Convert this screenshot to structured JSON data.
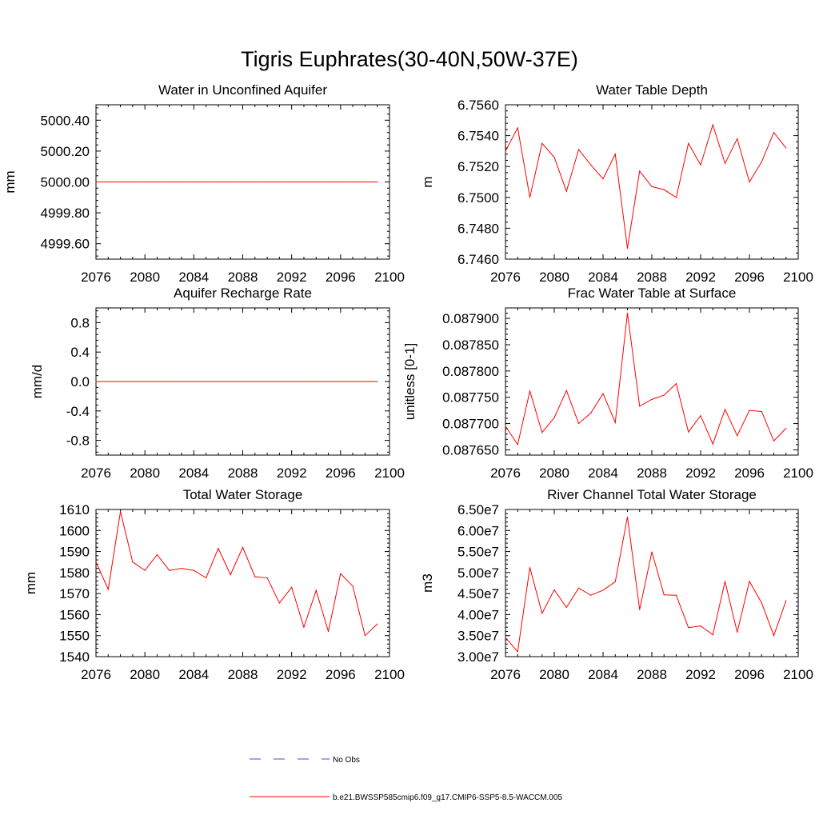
{
  "figure_title": "Tigris Euphrates(30-40N,50W-37E)",
  "colors": {
    "model_line": "#ff0000",
    "obs_line": "#4a4adb",
    "axis": "#000000"
  },
  "legend": {
    "obs_label": "No Obs",
    "model_label": "b.e21.BWSSP585cmip6.f09_g17.CMIP6-SSP5-8.5-WACCM.005"
  },
  "chart_data": [
    {
      "type": "line",
      "title": "Water in Unconfined Aquifer",
      "xlabel": "",
      "ylabel": "mm",
      "xlim": [
        2076,
        2100
      ],
      "ylim": [
        4999.5,
        5000.5
      ],
      "xticks": [
        2076,
        2080,
        2084,
        2088,
        2092,
        2096,
        2100
      ],
      "xtick_labels": [
        "2076",
        "2080",
        "2084",
        "2088",
        "2092",
        "2096",
        "2100"
      ],
      "yticks": [
        4999.6,
        4999.8,
        5000.0,
        5000.2,
        5000.4
      ],
      "ytick_labels": [
        "4999.60",
        "4999.80",
        "5000.00",
        "5000.20",
        "5000.40"
      ],
      "x": [
        2076,
        2077,
        2078,
        2079,
        2080,
        2081,
        2082,
        2083,
        2084,
        2085,
        2086,
        2087,
        2088,
        2089,
        2090,
        2091,
        2092,
        2093,
        2094,
        2095,
        2096,
        2097,
        2098,
        2099
      ],
      "series": [
        {
          "name": "b.e21.BWSSP585cmip6.f09_g17.CMIP6-SSP5-8.5-WACCM.005",
          "values": [
            5000,
            5000,
            5000,
            5000,
            5000,
            5000,
            5000,
            5000,
            5000,
            5000,
            5000,
            5000,
            5000,
            5000,
            5000,
            5000,
            5000,
            5000,
            5000,
            5000,
            5000,
            5000,
            5000,
            5000
          ]
        }
      ]
    },
    {
      "type": "line",
      "title": "Water Table Depth",
      "xlabel": "",
      "ylabel": "m",
      "xlim": [
        2076,
        2100
      ],
      "ylim": [
        6.746,
        6.756
      ],
      "xticks": [
        2076,
        2080,
        2084,
        2088,
        2092,
        2096,
        2100
      ],
      "xtick_labels": [
        "2076",
        "2080",
        "2084",
        "2088",
        "2092",
        "2096",
        "2100"
      ],
      "yticks": [
        6.746,
        6.748,
        6.75,
        6.752,
        6.754,
        6.756
      ],
      "ytick_labels": [
        "6.7460",
        "6.7480",
        "6.7500",
        "6.7520",
        "6.7540",
        "6.7560"
      ],
      "x": [
        2076,
        2077,
        2078,
        2079,
        2080,
        2081,
        2082,
        2083,
        2084,
        2085,
        2086,
        2087,
        2088,
        2089,
        2090,
        2091,
        2092,
        2093,
        2094,
        2095,
        2096,
        2097,
        2098,
        2099
      ],
      "series": [
        {
          "name": "b.e21.BWSSP585cmip6.f09_g17.CMIP6-SSP5-8.5-WACCM.005",
          "values": [
            6.753,
            6.7545,
            6.75,
            6.7535,
            6.7526,
            6.7504,
            6.7531,
            6.7521,
            6.7512,
            6.7528,
            6.7467,
            6.7517,
            6.7507,
            6.7505,
            6.75,
            6.7535,
            6.7521,
            6.7547,
            6.7522,
            6.7538,
            6.751,
            6.7523,
            6.7542,
            6.7532
          ]
        }
      ]
    },
    {
      "type": "line",
      "title": "Aquifer Recharge Rate",
      "xlabel": "",
      "ylabel": "mm/d",
      "xlim": [
        2076,
        2100
      ],
      "ylim": [
        -1.0,
        1.0
      ],
      "xticks": [
        2076,
        2080,
        2084,
        2088,
        2092,
        2096,
        2100
      ],
      "xtick_labels": [
        "2076",
        "2080",
        "2084",
        "2088",
        "2092",
        "2096",
        "2100"
      ],
      "yticks": [
        -0.8,
        -0.4,
        0.0,
        0.4,
        0.8
      ],
      "ytick_labels": [
        "-0.8",
        "-0.4",
        "0.0",
        "0.4",
        "0.8"
      ],
      "x": [
        2076,
        2077,
        2078,
        2079,
        2080,
        2081,
        2082,
        2083,
        2084,
        2085,
        2086,
        2087,
        2088,
        2089,
        2090,
        2091,
        2092,
        2093,
        2094,
        2095,
        2096,
        2097,
        2098,
        2099
      ],
      "series": [
        {
          "name": "b.e21.BWSSP585cmip6.f09_g17.CMIP6-SSP5-8.5-WACCM.005",
          "values": [
            0,
            0,
            0,
            0,
            0,
            0,
            0,
            0,
            0,
            0,
            0,
            0,
            0,
            0,
            0,
            0,
            0,
            0,
            0,
            0,
            0,
            0,
            0,
            0
          ]
        }
      ]
    },
    {
      "type": "line",
      "title": "Frac Water Table at Surface",
      "xlabel": "",
      "ylabel": "unitless [0-1]",
      "xlim": [
        2076,
        2100
      ],
      "ylim": [
        0.08764,
        0.08792
      ],
      "xticks": [
        2076,
        2080,
        2084,
        2088,
        2092,
        2096,
        2100
      ],
      "xtick_labels": [
        "2076",
        "2080",
        "2084",
        "2088",
        "2092",
        "2096",
        "2100"
      ],
      "yticks": [
        0.08765,
        0.0877,
        0.08775,
        0.0878,
        0.08785,
        0.0879
      ],
      "ytick_labels": [
        "0.087650",
        "0.087700",
        "0.087750",
        "0.087800",
        "0.087850",
        "0.087900"
      ],
      "x": [
        2076,
        2077,
        2078,
        2079,
        2080,
        2081,
        2082,
        2083,
        2084,
        2085,
        2086,
        2087,
        2088,
        2089,
        2090,
        2091,
        2092,
        2093,
        2094,
        2095,
        2096,
        2097,
        2098,
        2099
      ],
      "series": [
        {
          "name": "b.e21.BWSSP585cmip6.f09_g17.CMIP6-SSP5-8.5-WACCM.005",
          "values": [
            0.087695,
            0.08766,
            0.087762,
            0.087683,
            0.087711,
            0.087763,
            0.0877,
            0.08772,
            0.087757,
            0.087702,
            0.08791,
            0.087733,
            0.087746,
            0.087754,
            0.087776,
            0.087684,
            0.087715,
            0.087661,
            0.087727,
            0.087677,
            0.087725,
            0.087723,
            0.087667,
            0.087691
          ]
        }
      ]
    },
    {
      "type": "line",
      "title": "Total Water Storage",
      "xlabel": "",
      "ylabel": "mm",
      "xlim": [
        2076,
        2100
      ],
      "ylim": [
        1540,
        1610
      ],
      "xticks": [
        2076,
        2080,
        2084,
        2088,
        2092,
        2096,
        2100
      ],
      "xtick_labels": [
        "2076",
        "2080",
        "2084",
        "2088",
        "2092",
        "2096",
        "2100"
      ],
      "yticks": [
        1540,
        1550,
        1560,
        1570,
        1580,
        1590,
        1600,
        1610
      ],
      "ytick_labels": [
        "1540",
        "1550",
        "1560",
        "1570",
        "1580",
        "1590",
        "1600",
        "1610"
      ],
      "x": [
        2076,
        2077,
        2078,
        2079,
        2080,
        2081,
        2082,
        2083,
        2084,
        2085,
        2086,
        2087,
        2088,
        2089,
        2090,
        2091,
        2092,
        2093,
        2094,
        2095,
        2096,
        2097,
        2098,
        2099
      ],
      "series": [
        {
          "name": "b.e21.BWSSP585cmip6.f09_g17.CMIP6-SSP5-8.5-WACCM.005",
          "values": [
            1585,
            1572,
            1609,
            1585,
            1581,
            1588.5,
            1581,
            1582,
            1581,
            1577.5,
            1591.5,
            1579,
            1592,
            1578,
            1577.5,
            1565.5,
            1573,
            1554,
            1571.5,
            1552,
            1579.5,
            1573.5,
            1550,
            1555.5
          ]
        }
      ]
    },
    {
      "type": "line",
      "title": "River Channel Total Water Storage",
      "xlabel": "",
      "ylabel": "m3",
      "xlim": [
        2076,
        2100
      ],
      "ylim": [
        30000000,
        65000000
      ],
      "xticks": [
        2076,
        2080,
        2084,
        2088,
        2092,
        2096,
        2100
      ],
      "xtick_labels": [
        "2076",
        "2080",
        "2084",
        "2088",
        "2092",
        "2096",
        "2100"
      ],
      "yticks": [
        30000000,
        35000000,
        40000000,
        45000000,
        50000000,
        55000000,
        60000000,
        65000000
      ],
      "ytick_labels": [
        "3.00e7",
        "3.50e7",
        "4.00e7",
        "4.50e7",
        "5.00e7",
        "5.50e7",
        "6.00e7",
        "6.50e7"
      ],
      "x": [
        2076,
        2077,
        2078,
        2079,
        2080,
        2081,
        2082,
        2083,
        2084,
        2085,
        2086,
        2087,
        2088,
        2089,
        2090,
        2091,
        2092,
        2093,
        2094,
        2095,
        2096,
        2097,
        2098,
        2099
      ],
      "series": [
        {
          "name": "b.e21.BWSSP585cmip6.f09_g17.CMIP6-SSP5-8.5-WACCM.005",
          "values": [
            34500000,
            31200000,
            51200000,
            40300000,
            45900000,
            41700000,
            46300000,
            44600000,
            45800000,
            47800000,
            63200000,
            41200000,
            54900000,
            44700000,
            44600000,
            36900000,
            37300000,
            35200000,
            47900000,
            35800000,
            47900000,
            42800000,
            35000000,
            43300000
          ]
        }
      ]
    }
  ]
}
